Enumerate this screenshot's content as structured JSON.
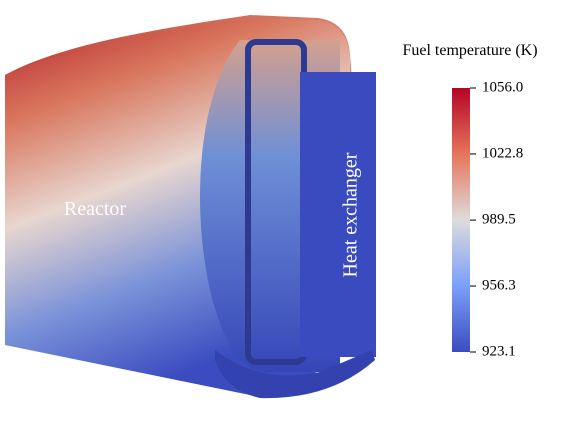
{
  "figure": {
    "labels": {
      "reactor": "Reactor",
      "heat_exchanger": "Heat exchanger"
    },
    "colorbar": {
      "title": "Fuel temperature (K)",
      "range": [
        923.1,
        1056.0
      ],
      "ticks": [
        {
          "value": 1056.0,
          "label": "1056.0"
        },
        1022.8,
        989.5,
        956.3,
        923.1
      ]
    }
  }
}
